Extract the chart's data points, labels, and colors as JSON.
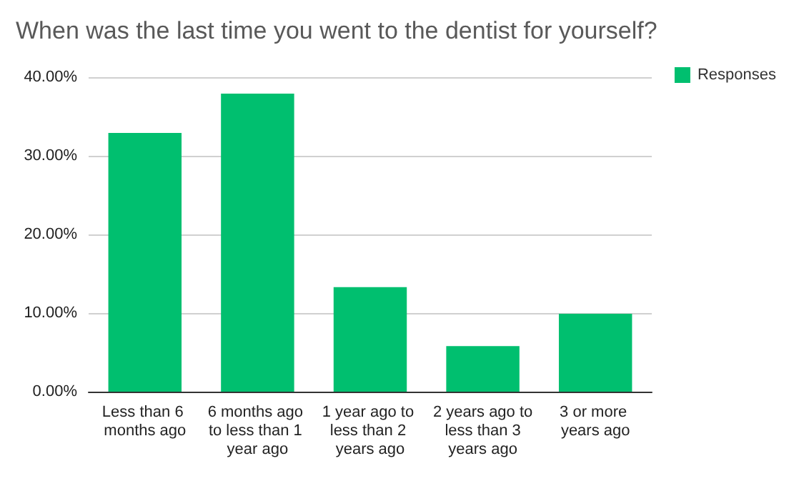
{
  "chart_data": {
    "type": "bar",
    "title": "When was the last time you went to the dentist for yourself?",
    "categories": [
      "Less than 6 months ago",
      "6 months ago to less than 1 year ago",
      "1 year ago to less than 2 years ago",
      "2 years ago to less than 3 years ago",
      "3 or more years ago"
    ],
    "series": [
      {
        "name": "Responses",
        "color": "#00bf6f",
        "values": [
          32.9,
          37.9,
          13.3,
          5.8,
          9.9
        ]
      }
    ],
    "ylim": [
      0,
      40
    ],
    "yticks": [
      {
        "value": 0,
        "label": "0.00%"
      },
      {
        "value": 10,
        "label": "10.00%"
      },
      {
        "value": 20,
        "label": "20.00%"
      },
      {
        "value": 30,
        "label": "30.00%"
      },
      {
        "value": 40,
        "label": "40.00%"
      }
    ],
    "grid": "y",
    "legend": "top right"
  }
}
